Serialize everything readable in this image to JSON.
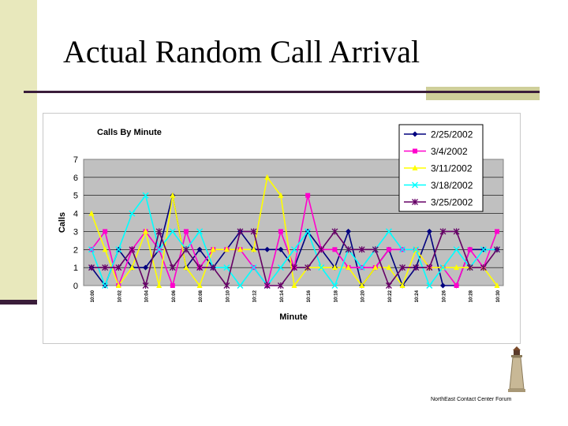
{
  "slide": {
    "title": "Actual Random Call Arrival",
    "footer": "NorthEast Contact Center Forum"
  },
  "chart_data": {
    "type": "line",
    "title": "Calls By Minute",
    "xlabel": "Minute",
    "ylabel": "Calls",
    "ylim": [
      0,
      7
    ],
    "yticks": [
      "0",
      "1",
      "2",
      "3",
      "4",
      "5",
      "6",
      "7"
    ],
    "x": [
      "10:00",
      "10:01",
      "10:02",
      "10:03",
      "10:04",
      "10:05",
      "10:06",
      "10:07",
      "10:08",
      "10:09",
      "10:10",
      "10:11",
      "10:12",
      "10:13",
      "10:14",
      "10:15",
      "10:16",
      "10:17",
      "10:18",
      "10:19",
      "10:20",
      "10:21",
      "10:22",
      "10:23",
      "10:24",
      "10:25",
      "10:26",
      "10:27",
      "10:28",
      "10:29",
      "10:30"
    ],
    "xtick_labels": [
      "10:00",
      "10:02",
      "10:04",
      "10:06",
      "10:08",
      "10:10",
      "10:12",
      "10:14",
      "10:16",
      "10:18",
      "10:20",
      "10:22",
      "10:24",
      "10:26",
      "10:28",
      "10:30"
    ],
    "grid": true,
    "legend_position": "top-right",
    "series": [
      {
        "name": "2/25/2002",
        "color": "#00007f",
        "marker": "diamond",
        "values": [
          1,
          0,
          2,
          1,
          1,
          2,
          5,
          1,
          2,
          1,
          2,
          3,
          2,
          2,
          2,
          1,
          3,
          2,
          1,
          3,
          0,
          1,
          2,
          0,
          1,
          3,
          0,
          0,
          2,
          2,
          2
        ]
      },
      {
        "name": "3/4/2002",
        "color": "#ff00cc",
        "marker": "square",
        "values": [
          2,
          3,
          0,
          2,
          3,
          2,
          0,
          3,
          1,
          2,
          2,
          2,
          1,
          0,
          3,
          1,
          5,
          2,
          2,
          1,
          1,
          1,
          2,
          2,
          2,
          1,
          1,
          0,
          2,
          1,
          3
        ]
      },
      {
        "name": "3/11/2002",
        "color": "#ffff00",
        "marker": "triangle",
        "values": [
          4,
          2,
          0,
          1,
          3,
          0,
          5,
          1,
          0,
          2,
          2,
          2,
          2,
          6,
          5,
          0,
          1,
          1,
          1,
          1,
          0,
          1,
          1,
          0,
          2,
          1,
          1,
          1,
          1,
          1,
          0
        ]
      },
      {
        "name": "3/18/2002",
        "color": "#00ffff",
        "marker": "x",
        "values": [
          2,
          0,
          2,
          4,
          5,
          2,
          3,
          2,
          3,
          1,
          1,
          0,
          1,
          0,
          1,
          2,
          3,
          1,
          0,
          2,
          1,
          2,
          3,
          2,
          2,
          0,
          1,
          2,
          1,
          2,
          2
        ]
      },
      {
        "name": "3/25/2002",
        "color": "#660066",
        "marker": "star",
        "values": [
          1,
          1,
          1,
          2,
          0,
          3,
          1,
          2,
          1,
          1,
          0,
          3,
          3,
          0,
          0,
          1,
          1,
          2,
          3,
          2,
          2,
          2,
          0,
          1,
          1,
          1,
          3,
          3,
          1,
          1,
          2
        ]
      }
    ]
  }
}
